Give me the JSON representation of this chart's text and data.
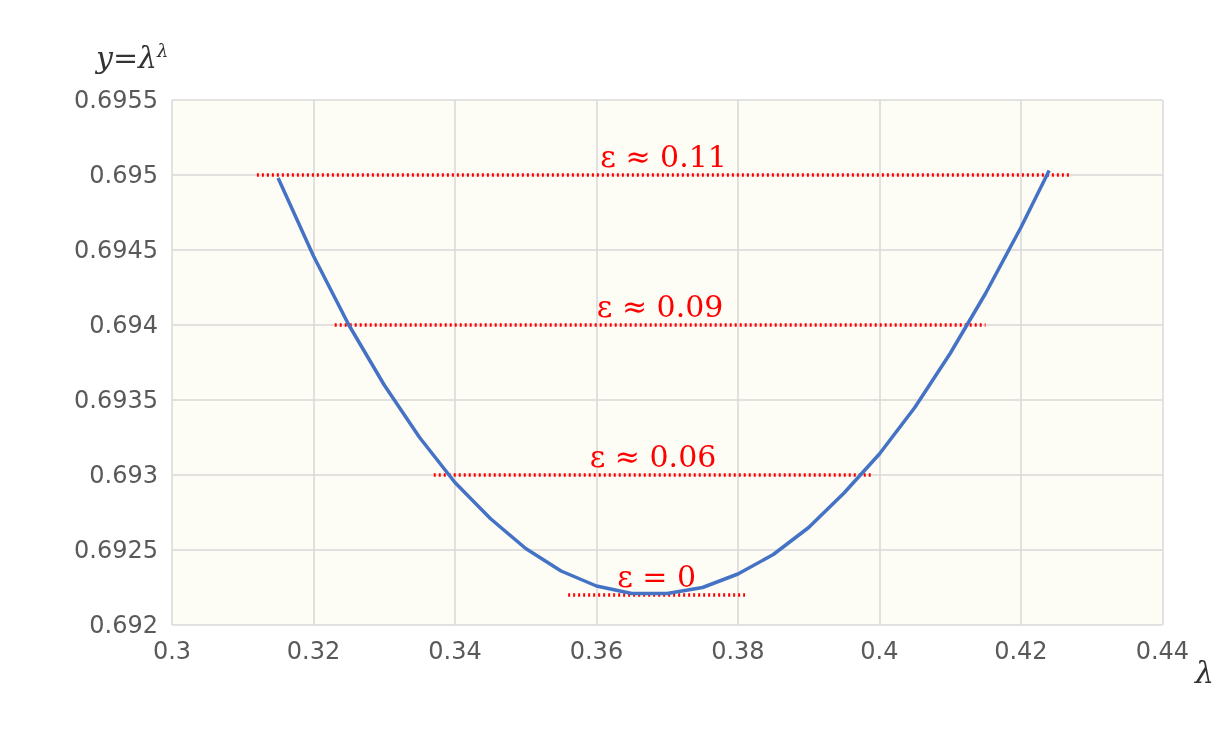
{
  "chart_data": {
    "type": "line",
    "xlabel": "λ",
    "ylabel": "y=λ$^{λ}$",
    "xlim": [
      0.3,
      0.44
    ],
    "xticks": [
      0.3,
      0.32,
      0.34,
      0.36,
      0.38,
      0.4,
      0.42,
      0.44
    ],
    "ylim": [
      0.692,
      0.6955
    ],
    "yticks": [
      0.692,
      0.6925,
      0.693,
      0.6935,
      0.694,
      0.6945,
      0.695,
      0.6955
    ],
    "grid": true,
    "marker": "none",
    "line_style": "solid",
    "series": [
      {
        "color": "#4472c4",
        "x": [
          0.315,
          0.32,
          0.325,
          0.33,
          0.335,
          0.34,
          0.345,
          0.35,
          0.355,
          0.36,
          0.365,
          0.37,
          0.375,
          0.38,
          0.385,
          0.39,
          0.395,
          0.4,
          0.405,
          0.41,
          0.415,
          0.42,
          0.424
        ],
        "values": [
          0.69498,
          0.69446,
          0.694,
          0.6936,
          0.69325,
          0.69295,
          0.69271,
          0.69251,
          0.69236,
          0.69226,
          0.69221,
          0.69221,
          0.69225,
          0.69234,
          0.69247,
          0.69265,
          0.69288,
          0.69314,
          0.69345,
          0.69381,
          0.69421,
          0.69465,
          0.69503
        ]
      },
      {
        "name": "ε ≈ 0.11",
        "color": "#ff0000",
        "line_style": "dotted",
        "x": [
          0.312,
          0.427
        ],
        "values": [
          0.695,
          0.695
        ]
      },
      {
        "name": "ε ≈ 0.09",
        "color": "#ff0000",
        "line_style": "dotted",
        "x": [
          0.323,
          0.415
        ],
        "values": [
          0.694,
          0.694
        ]
      },
      {
        "name": "ε ≈ 0.06",
        "color": "#ff0000",
        "line_style": "dotted",
        "x": [
          0.337,
          0.399
        ],
        "values": [
          0.693,
          0.693
        ]
      },
      {
        "name": "ε = 0",
        "color": "#ff0000",
        "line_style": "dotted",
        "x": [
          0.356,
          0.381
        ],
        "values": [
          0.6922,
          0.6922
        ]
      }
    ]
  }
}
